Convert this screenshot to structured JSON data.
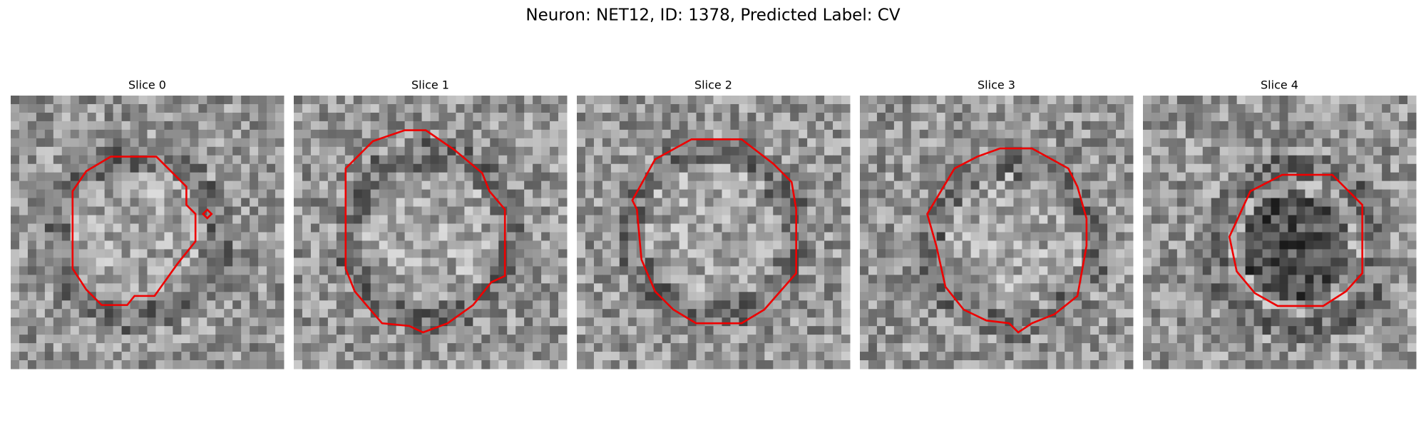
{
  "title": "Neuron: NET12, ID: 1378, Predicted Label: CV",
  "panels": [
    {
      "title": "Slice 0"
    },
    {
      "title": "Slice 1"
    },
    {
      "title": "Slice 2"
    },
    {
      "title": "Slice 3"
    },
    {
      "title": "Slice 4"
    }
  ]
}
